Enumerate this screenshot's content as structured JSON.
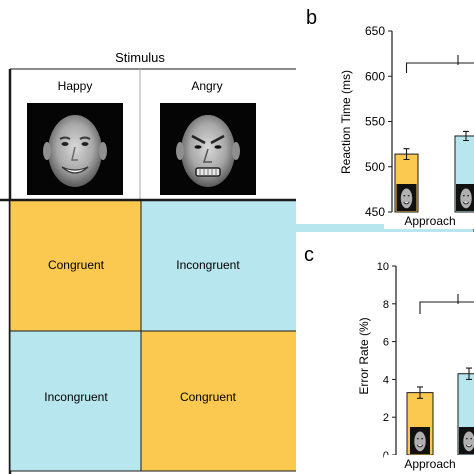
{
  "panel_a": {
    "header": "Stimulus",
    "columns": [
      "Happy",
      "Angry"
    ],
    "cells": [
      [
        "Congruent",
        "Incongruent"
      ],
      [
        "Incongruent",
        "Congruent"
      ]
    ],
    "colors": {
      "congruent": "#fbc94f",
      "incongruent": "#b8e6ef",
      "border": "#1a1a1a",
      "divider": "#aaaaaa"
    }
  },
  "panel_b": {
    "letter": "b"
  },
  "panel_c": {
    "letter": "c"
  },
  "chart_data": [
    {
      "type": "bar",
      "ylabel": "Reaction Time (ms)",
      "ylim": [
        450,
        650
      ],
      "yticks": [
        450,
        500,
        550,
        600,
        650
      ],
      "categories": [
        "Approach"
      ],
      "series": [
        {
          "values": [
            514
          ],
          "errors": [
            6
          ],
          "color": "#fbc94f"
        },
        {
          "values": [
            534
          ],
          "errors": [
            5
          ],
          "color": "#b8e6ef"
        }
      ],
      "annotations": {
        "significance_bracket": true
      }
    },
    {
      "type": "bar",
      "ylabel": "Error Rate (%)",
      "ylim": [
        0,
        10
      ],
      "yticks": [
        0,
        2,
        4,
        6,
        8,
        10
      ],
      "categories": [
        "Approach"
      ],
      "series": [
        {
          "values": [
            3.3
          ],
          "errors": [
            0.3
          ],
          "color": "#fbc94f"
        },
        {
          "values": [
            4.3
          ],
          "errors": [
            0.3
          ],
          "color": "#b8e6ef"
        }
      ],
      "annotations": {
        "significance_bracket": true
      }
    }
  ]
}
